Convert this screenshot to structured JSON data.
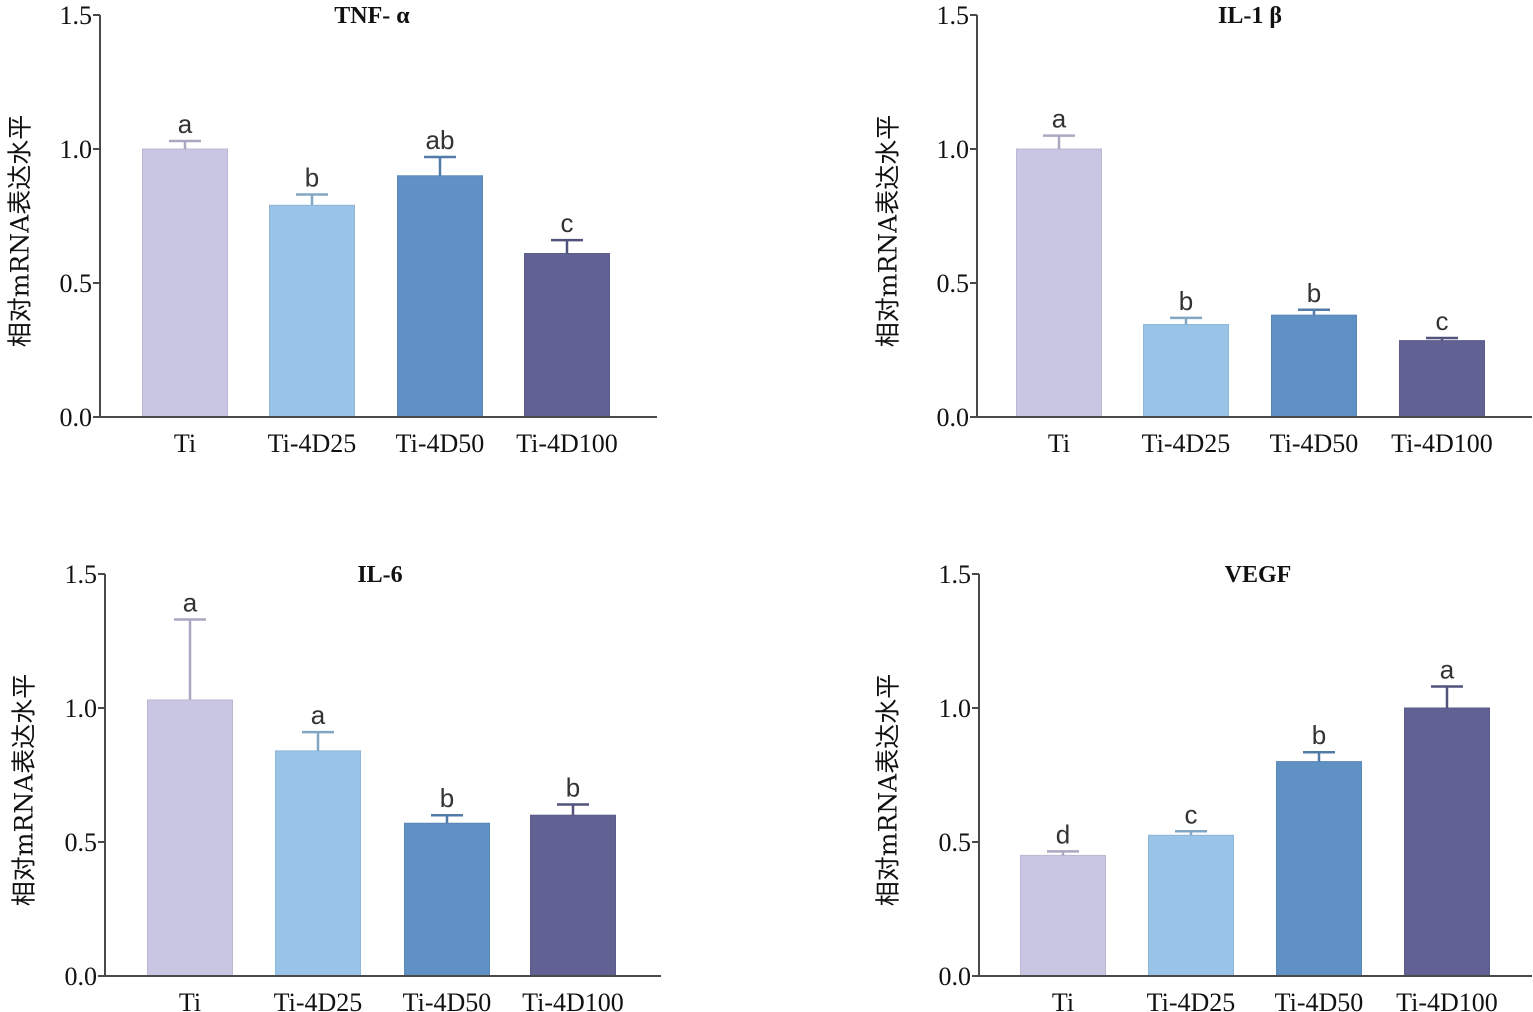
{
  "colors": [
    "#c8c6e3",
    "#99c4e8",
    "#6091c4",
    "#616293"
  ],
  "chart_data": [
    {
      "type": "bar",
      "title": "TNF- α",
      "ylabel": "相对mRNA表达水平",
      "xlabel": "",
      "ylim": [
        0,
        1.5
      ],
      "yticks": [
        "0.0",
        "0.5",
        "1.0",
        "1.5"
      ],
      "categories": [
        "Ti",
        "Ti-4D25",
        "Ti-4D50",
        "Ti-4D100"
      ],
      "values": [
        1.0,
        0.79,
        0.9,
        0.61
      ],
      "errors": [
        0.03,
        0.04,
        0.07,
        0.05
      ],
      "significance": [
        "a",
        "b",
        "ab",
        "c"
      ]
    },
    {
      "type": "bar",
      "title": "IL-1 β",
      "ylabel": "相对mRNA表达水平",
      "xlabel": "",
      "ylim": [
        0,
        1.5
      ],
      "yticks": [
        "0.0",
        "0.5",
        "1.0",
        "1.5"
      ],
      "categories": [
        "Ti",
        "Ti-4D25",
        "Ti-4D50",
        "Ti-4D100"
      ],
      "values": [
        1.0,
        0.345,
        0.38,
        0.285
      ],
      "errors": [
        0.05,
        0.025,
        0.02,
        0.01
      ],
      "significance": [
        "a",
        "b",
        "b",
        "c"
      ]
    },
    {
      "type": "bar",
      "title": "IL-6",
      "ylabel": "相对mRNA表达水平",
      "xlabel": "",
      "ylim": [
        0,
        1.5
      ],
      "yticks": [
        "0.0",
        "0.5",
        "1.0",
        "1.5"
      ],
      "categories": [
        "Ti",
        "Ti-4D25",
        "Ti-4D50",
        "Ti-4D100"
      ],
      "values": [
        1.03,
        0.84,
        0.57,
        0.6
      ],
      "errors": [
        0.3,
        0.07,
        0.03,
        0.04
      ],
      "significance": [
        "a",
        "a",
        "b",
        "b"
      ]
    },
    {
      "type": "bar",
      "title": "VEGF",
      "ylabel": "相对mRNA表达水平",
      "xlabel": "",
      "ylim": [
        0,
        1.5
      ],
      "yticks": [
        "0.0",
        "0.5",
        "1.0",
        "1.5"
      ],
      "categories": [
        "Ti",
        "Ti-4D25",
        "Ti-4D50",
        "Ti-4D100"
      ],
      "values": [
        0.45,
        0.525,
        0.8,
        1.0
      ],
      "errors": [
        0.015,
        0.015,
        0.035,
        0.08
      ],
      "significance": [
        "d",
        "c",
        "b",
        "a"
      ]
    }
  ]
}
